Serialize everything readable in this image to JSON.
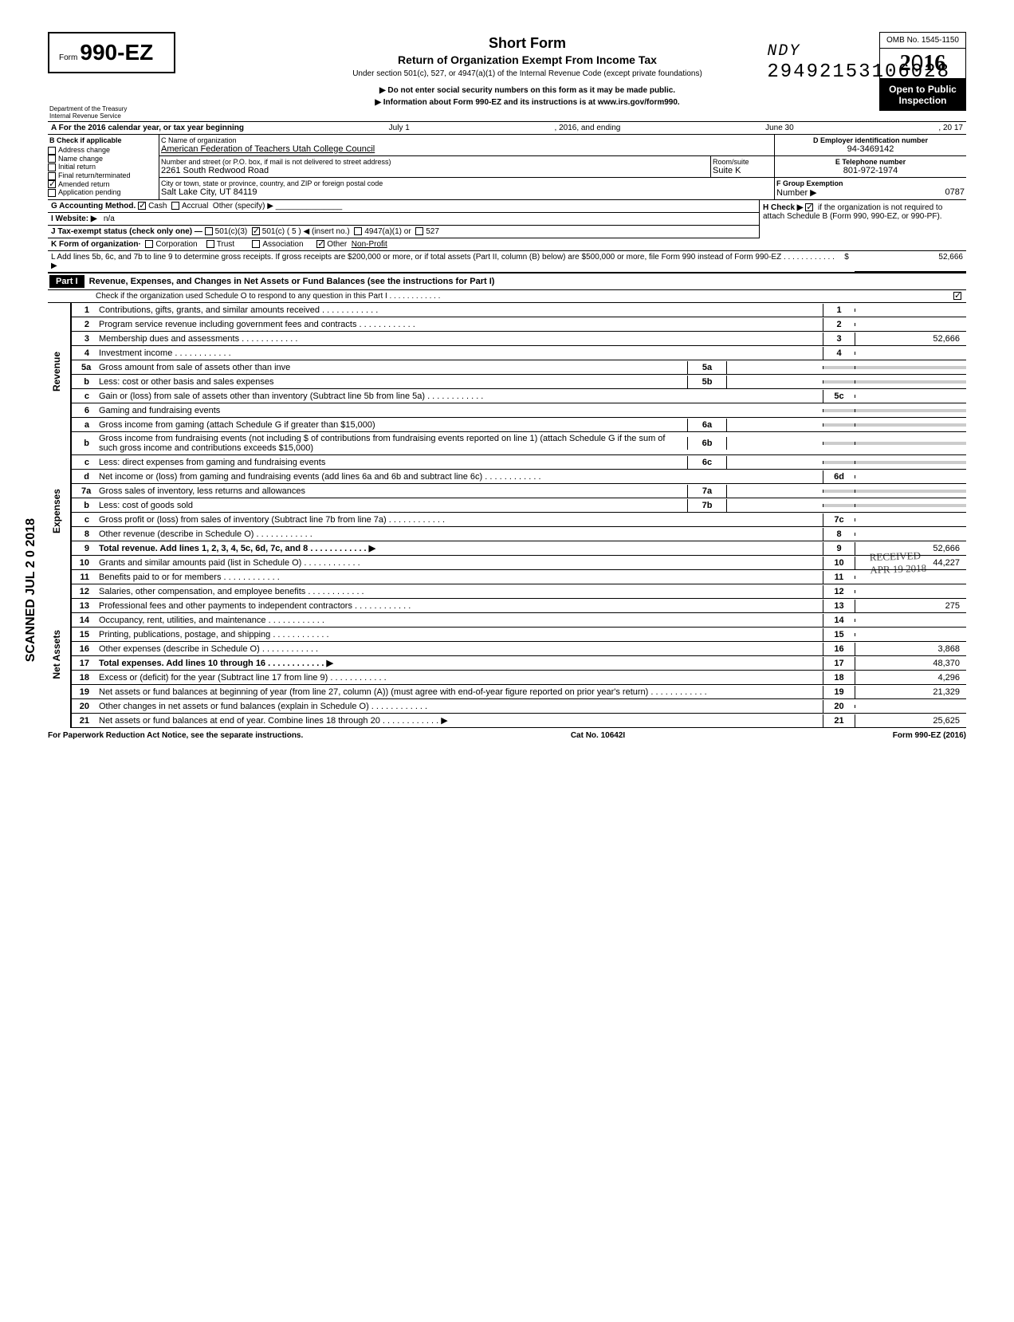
{
  "top_number": "29492153106028",
  "top_handwritten": "NDY",
  "form": {
    "prefix": "Form",
    "number": "990-EZ",
    "dept": "Department of the Treasury",
    "irs": "Internal Revenue Service",
    "title_short": "Short Form",
    "title_main": "Return of Organization Exempt From Income Tax",
    "title_under": "Under section 501(c), 527, or 4947(a)(1) of the Internal Revenue Code (except private foundations)",
    "note1": "▶ Do not enter social security numbers on this form as it may be made public.",
    "note2": "▶ Information about Form 990-EZ and its instructions is at www.irs.gov/form990.",
    "omb": "OMB No. 1545-1150",
    "year": "2016",
    "inspection1": "Open to Public",
    "inspection2": "Inspection"
  },
  "period": {
    "a_label": "A For the 2016 calendar year, or tax year beginning",
    "begin": "July 1",
    "mid": ", 2016, and ending",
    "end": "June 30",
    "end_year": ", 20  17"
  },
  "checkB": {
    "label": "B  Check if applicable",
    "items": [
      "Address change",
      "Name change",
      "Initial return",
      "Final return/terminated",
      "Amended return",
      "Application pending"
    ],
    "checked_index": 4
  },
  "org": {
    "c_label": "C  Name of organization",
    "name": "American Federation of Teachers  Utah College Council",
    "street_label": "Number and street (or P.O. box, if mail is not delivered to street address)",
    "street": "2261 South Redwood Road",
    "room_label": "Room/suite",
    "room": "Suite K",
    "city_label": "City or town, state or province, country, and ZIP or foreign postal code",
    "city": "Salt Lake City, UT  84119"
  },
  "right": {
    "d_label": "D Employer identification number",
    "ein": "94-3469142",
    "e_label": "E Telephone number",
    "phone": "801-972-1974",
    "f_label": "F Group Exemption",
    "f_num_label": "Number ▶",
    "f_num": "0787"
  },
  "g": {
    "label": "G  Accounting Method.",
    "cash": "Cash",
    "accrual": "Accrual",
    "other": "Other (specify) ▶"
  },
  "h": {
    "label": "H  Check ▶",
    "text": "if the organization is not required to attach Schedule B (Form 990, 990-EZ, or 990-PF)."
  },
  "i": {
    "label": "I  Website: ▶",
    "value": "n/a"
  },
  "j": {
    "label": "J  Tax-exempt status (check only one) —",
    "c3": "501(c)(3)",
    "c": "501(c) (",
    "cnum": "5",
    "cend": ") ◀ (insert no.)",
    "a4947": "4947(a)(1) or",
    "s527": "527"
  },
  "k": {
    "label": "K  Form of organization·",
    "corp": "Corporation",
    "trust": "Trust",
    "assoc": "Association",
    "other": "Other",
    "other_val": "Non-Profit"
  },
  "l": {
    "text": "L  Add lines 5b, 6c, and 7b to line 9 to determine gross receipts. If gross receipts are $200,000 or more, or if total assets (Part II, column (B) below) are $500,000 or more, file Form 990 instead of Form 990-EZ",
    "amount": "52,666"
  },
  "part1": {
    "header": "Part I",
    "title": "Revenue, Expenses, and Changes in Net Assets or Fund Balances (see the instructions for Part I)",
    "check_line": "Check if the organization used Schedule O to respond to any question in this Part I"
  },
  "lines": {
    "1": {
      "label": "Contributions, gifts, grants, and similar amounts received",
      "val": ""
    },
    "2": {
      "label": "Program service revenue including government fees and contracts",
      "val": ""
    },
    "3": {
      "label": "Membership dues and assessments",
      "val": "52,666"
    },
    "4": {
      "label": "Investment income",
      "val": ""
    },
    "5a": {
      "label": "Gross amount from sale of assets other than inve",
      "sub": "5a"
    },
    "5b": {
      "label": "Less: cost or other basis and sales expenses",
      "sub": "5b"
    },
    "5c": {
      "label": "Gain or (loss) from sale of assets other than inventory (Subtract line 5b from line 5a)",
      "val": ""
    },
    "6": {
      "label": "Gaming and fundraising events"
    },
    "6a": {
      "label": "Gross income from gaming (attach Schedule G if greater than $15,000)",
      "sub": "6a"
    },
    "6b": {
      "label": "Gross income from fundraising events (not including  $                    of contributions from fundraising events reported on line 1) (attach Schedule G if the sum of such gross income and contributions exceeds $15,000)",
      "sub": "6b"
    },
    "6c": {
      "label": "Less: direct expenses from gaming and fundraising events",
      "sub": "6c"
    },
    "6d": {
      "label": "Net income or (loss) from gaming and fundraising events (add lines 6a and 6b and subtract line 6c)",
      "val": ""
    },
    "7a": {
      "label": "Gross sales of inventory, less returns and allowances",
      "sub": "7a"
    },
    "7b": {
      "label": "Less: cost of goods sold",
      "sub": "7b"
    },
    "7c": {
      "label": "Gross profit or (loss) from sales of inventory (Subtract line 7b from line 7a)",
      "val": ""
    },
    "8": {
      "label": "Other revenue (describe in Schedule O)",
      "val": ""
    },
    "9": {
      "label": "Total revenue. Add lines 1, 2, 3, 4, 5c, 6d, 7c, and 8",
      "val": "52,666",
      "arrow": "▶"
    },
    "10": {
      "label": "Grants and similar amounts paid (list in Schedule O)",
      "val": "44,227"
    },
    "11": {
      "label": "Benefits paid to or for members",
      "val": ""
    },
    "12": {
      "label": "Salaries, other compensation, and employee benefits",
      "val": ""
    },
    "13": {
      "label": "Professional fees and other payments to independent contractors",
      "val": "275"
    },
    "14": {
      "label": "Occupancy, rent, utilities, and maintenance",
      "val": ""
    },
    "15": {
      "label": "Printing, publications, postage, and shipping",
      "val": ""
    },
    "16": {
      "label": "Other expenses (describe in Schedule O)",
      "val": "3,868"
    },
    "17": {
      "label": "Total expenses. Add lines 10 through 16",
      "val": "48,370",
      "arrow": "▶"
    },
    "18": {
      "label": "Excess or (deficit) for the year (Subtract line 17 from line 9)",
      "val": "4,296"
    },
    "19": {
      "label": "Net assets or fund balances at beginning of year (from line 27, column (A)) (must agree with end-of-year figure reported on prior year's return)",
      "val": "21,329"
    },
    "20": {
      "label": "Other changes in net assets or fund balances (explain in Schedule O)",
      "val": ""
    },
    "21": {
      "label": "Net assets or fund balances at end of year. Combine lines 18 through 20",
      "val": "25,625",
      "arrow": "▶"
    }
  },
  "sections": {
    "revenue": "Revenue",
    "expenses": "Expenses",
    "netassets": "Net Assets"
  },
  "scanned": "SCANNED  JUL 2 0 2018",
  "received": {
    "l1": "RECEIVED",
    "l2": "APR 19 2018"
  },
  "footer": {
    "left": "For Paperwork Reduction Act Notice, see the separate instructions.",
    "center": "Cat No. 10642I",
    "right": "Form 990-EZ (2016)"
  }
}
